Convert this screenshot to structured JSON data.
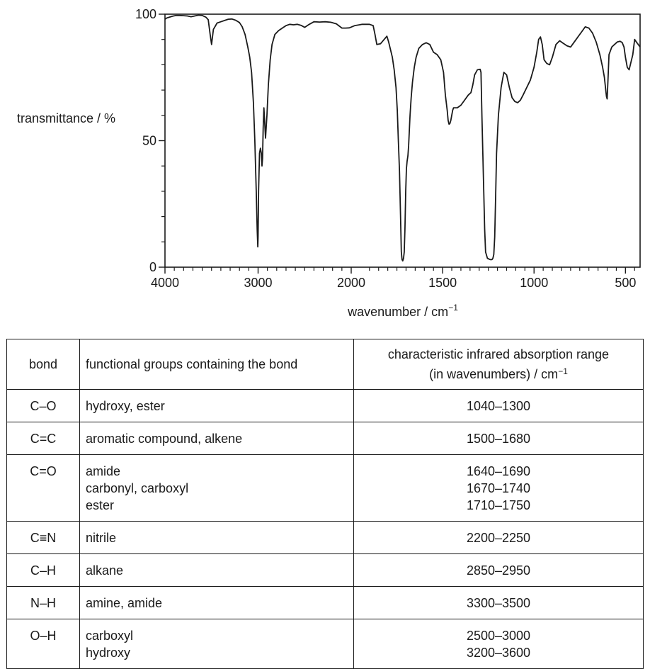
{
  "chart_data": {
    "type": "line",
    "ylabel": "transmittance / %",
    "xlabel": "wavenumber / cm",
    "xlabel_superscript": "−1",
    "xlim": [
      4000,
      420
    ],
    "ylim": [
      0,
      100
    ],
    "x_ticks": [
      4000,
      3000,
      2000,
      1500,
      1000,
      500
    ],
    "x_tick_labels": [
      "4000",
      "3000",
      "2000",
      "1500",
      "1000",
      "500"
    ],
    "y_ticks": [
      0,
      50,
      100
    ],
    "y_tick_labels": [
      "0",
      "50",
      "100"
    ],
    "series": [
      {
        "x": [
          4000,
          3980,
          3920,
          3880,
          3840,
          3800,
          3760,
          3720,
          3680,
          3640,
          3600,
          3560,
          3535,
          3515,
          3500,
          3480,
          3440,
          3400,
          3360,
          3320,
          3280,
          3240,
          3200,
          3170,
          3140,
          3110,
          3090,
          3070,
          3050,
          3035,
          3020,
          3010,
          3003,
          3000,
          2995,
          2985,
          2975,
          2965,
          2958,
          2952,
          2945,
          2938,
          2930,
          2920,
          2905,
          2890,
          2870,
          2850,
          2820,
          2780,
          2740,
          2700,
          2660,
          2620,
          2580,
          2540,
          2500,
          2450,
          2400,
          2340,
          2280,
          2220,
          2160,
          2100,
          2060,
          2020,
          1980,
          1940,
          1900,
          1880,
          1870,
          1860,
          1840,
          1820,
          1805,
          1795,
          1785,
          1775,
          1765,
          1755,
          1748,
          1742,
          1736,
          1730,
          1726,
          1722,
          1718,
          1714,
          1710,
          1706,
          1702,
          1698,
          1694,
          1690,
          1686,
          1682,
          1678,
          1672,
          1665,
          1655,
          1645,
          1630,
          1610,
          1590,
          1570,
          1550,
          1530,
          1510,
          1495,
          1485,
          1475,
          1470,
          1465,
          1460,
          1455,
          1450,
          1445,
          1440,
          1420,
          1400,
          1380,
          1360,
          1345,
          1335,
          1325,
          1310,
          1295,
          1290,
          1285,
          1280,
          1275,
          1270,
          1265,
          1255,
          1240,
          1230,
          1225,
          1220,
          1215,
          1210,
          1205,
          1195,
          1180,
          1165,
          1150,
          1135,
          1120,
          1105,
          1090,
          1075,
          1060,
          1040,
          1020,
          1000,
          985,
          975,
          965,
          955,
          945,
          930,
          915,
          900,
          880,
          860,
          840,
          820,
          800,
          780,
          760,
          740,
          720,
          700,
          680,
          660,
          640,
          625,
          615,
          608,
          604,
          600,
          595,
          590,
          575,
          560,
          545,
          530,
          518,
          508,
          500,
          490,
          480,
          470,
          460,
          450,
          440,
          430,
          420
        ],
        "y": [
          98,
          98.5,
          99.2,
          99.5,
          99.5,
          99.4,
          99.3,
          99.0,
          99.3,
          99.6,
          99.5,
          98.8,
          97.8,
          92.0,
          88.0,
          94.0,
          96.5,
          97.0,
          97.5,
          98.0,
          98.1,
          97.6,
          96.7,
          95.0,
          92.0,
          87.0,
          83.0,
          77.0,
          65.0,
          50.0,
          30.0,
          15.0,
          8.0,
          12.0,
          30.0,
          45.0,
          47.0,
          45.0,
          40.0,
          43.0,
          55.0,
          63.0,
          58.0,
          51.0,
          60.0,
          72.0,
          82.0,
          88.0,
          92.0,
          93.5,
          94.5,
          95.5,
          96.0,
          95.8,
          96.0,
          95.6,
          94.8,
          96.0,
          97.0,
          96.9,
          97.0,
          96.8,
          96.2,
          94.5,
          94.5,
          94.6,
          95.5,
          96.0,
          96.0,
          95.5,
          92.0,
          88.0,
          88.3,
          90.0,
          91.3,
          89.0,
          86.0,
          83.0,
          78.0,
          71.0,
          62.0,
          50.0,
          38.0,
          20.0,
          6.0,
          3.0,
          2.5,
          3.5,
          6.0,
          15.0,
          30.0,
          39.0,
          42.0,
          44.0,
          48.0,
          54.0,
          60.0,
          67.0,
          73.0,
          79.0,
          83.0,
          86.5,
          88.0,
          88.7,
          88.0,
          85.0,
          84.0,
          82.0,
          77.0,
          68.0,
          62.0,
          58.0,
          56.5,
          56.8,
          58.0,
          60.0,
          62.0,
          63.0,
          63.0,
          64.0,
          66.0,
          68.0,
          69.0,
          72.0,
          76.0,
          78.0,
          78.2,
          77.0,
          60.0,
          45.0,
          30.0,
          15.0,
          6.0,
          3.5,
          3.0,
          3.0,
          3.5,
          5.0,
          12.0,
          28.0,
          45.0,
          60.0,
          71.0,
          77.0,
          76.0,
          71.0,
          67.0,
          65.5,
          65.0,
          66.0,
          68.0,
          71.0,
          74.0,
          79.0,
          85.0,
          90.0,
          91.0,
          88.0,
          82.0,
          80.5,
          80.0,
          83.0,
          88.0,
          89.5,
          88.5,
          87.5,
          87.0,
          89.0,
          91.0,
          93.0,
          95.0,
          94.5,
          92.5,
          89.0,
          84.0,
          79.0,
          75.0,
          70.0,
          67.5,
          66.5,
          75.0,
          84.0,
          87.0,
          88.0,
          89.0,
          89.3,
          88.8,
          87.0,
          83.0,
          79.0,
          78.0,
          81.0,
          84.0,
          90.0,
          89.0,
          88.0,
          87.0
        ]
      }
    ]
  },
  "table": {
    "headers": {
      "bond": "bond",
      "groups": "functional groups containing the bond",
      "range_line1": "characteristic infrared absorption range",
      "range_line2": "(in wavenumbers) / cm",
      "range_sup": "−1"
    },
    "rows": [
      {
        "bond": "C–O",
        "groups": [
          "hydroxy, ester"
        ],
        "ranges": [
          "1040–1300"
        ]
      },
      {
        "bond": "C=C",
        "groups": [
          "aromatic compound, alkene"
        ],
        "ranges": [
          "1500–1680"
        ]
      },
      {
        "bond": "C=O",
        "groups": [
          "amide",
          "carbonyl, carboxyl",
          "ester"
        ],
        "ranges": [
          "1640–1690",
          "1670–1740",
          "1710–1750"
        ]
      },
      {
        "bond": "C≡N",
        "groups": [
          "nitrile"
        ],
        "ranges": [
          "2200–2250"
        ]
      },
      {
        "bond": "C–H",
        "groups": [
          "alkane"
        ],
        "ranges": [
          "2850–2950"
        ]
      },
      {
        "bond": "N–H",
        "groups": [
          "amine, amide"
        ],
        "ranges": [
          "3300–3500"
        ]
      },
      {
        "bond": "O–H",
        "groups": [
          "carboxyl",
          "hydroxy"
        ],
        "ranges": [
          "2500–3000",
          "3200–3600"
        ]
      }
    ]
  }
}
